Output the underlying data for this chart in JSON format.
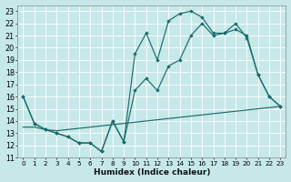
{
  "xlabel": "Humidex (Indice chaleur)",
  "bg_color": "#c6e8e8",
  "grid_color": "#b0d8d8",
  "line_color": "#1a6b6b",
  "xlim": [
    -0.5,
    23.5
  ],
  "ylim": [
    11,
    23.5
  ],
  "xticks": [
    0,
    1,
    2,
    3,
    4,
    5,
    6,
    7,
    8,
    9,
    10,
    11,
    12,
    13,
    14,
    15,
    16,
    17,
    18,
    19,
    20,
    21,
    22,
    23
  ],
  "yticks": [
    11,
    12,
    13,
    14,
    15,
    16,
    17,
    18,
    19,
    20,
    21,
    22,
    23
  ],
  "line_max_x": [
    0,
    1,
    2,
    3,
    4,
    5,
    6,
    7,
    8,
    9,
    10,
    11,
    12,
    13,
    14,
    15,
    16,
    17,
    18,
    19,
    20,
    21,
    22,
    23
  ],
  "line_max_y": [
    16.0,
    13.8,
    13.3,
    13.0,
    12.7,
    12.2,
    12.2,
    11.5,
    14.0,
    12.3,
    19.5,
    21.2,
    19.0,
    22.2,
    22.8,
    23.0,
    22.5,
    21.2,
    21.2,
    22.0,
    20.8,
    17.8,
    16.0,
    15.2
  ],
  "line_mid_x": [
    0,
    1,
    2,
    3,
    4,
    5,
    6,
    7,
    8,
    9,
    10,
    11,
    12,
    13,
    14,
    15,
    16,
    17,
    18,
    19,
    20,
    21,
    22,
    23
  ],
  "line_mid_y": [
    16.0,
    13.8,
    13.3,
    13.0,
    12.7,
    12.2,
    12.2,
    11.5,
    14.0,
    12.3,
    16.5,
    17.5,
    16.5,
    18.5,
    19.0,
    21.0,
    22.0,
    21.0,
    21.2,
    21.5,
    21.0,
    17.8,
    16.0,
    15.2
  ],
  "line_diag_x": [
    0,
    1,
    2,
    3,
    4,
    5,
    6,
    7,
    8,
    9,
    10,
    11,
    12,
    13,
    14,
    15,
    16,
    17,
    18,
    19,
    20,
    21,
    22,
    23
  ],
  "line_diag_y": [
    13.5,
    13.5,
    13.3,
    13.2,
    13.3,
    13.4,
    13.5,
    13.6,
    13.7,
    13.8,
    13.9,
    14.0,
    14.1,
    14.2,
    14.3,
    14.4,
    14.5,
    14.6,
    14.7,
    14.8,
    14.9,
    15.0,
    15.1,
    15.2
  ]
}
